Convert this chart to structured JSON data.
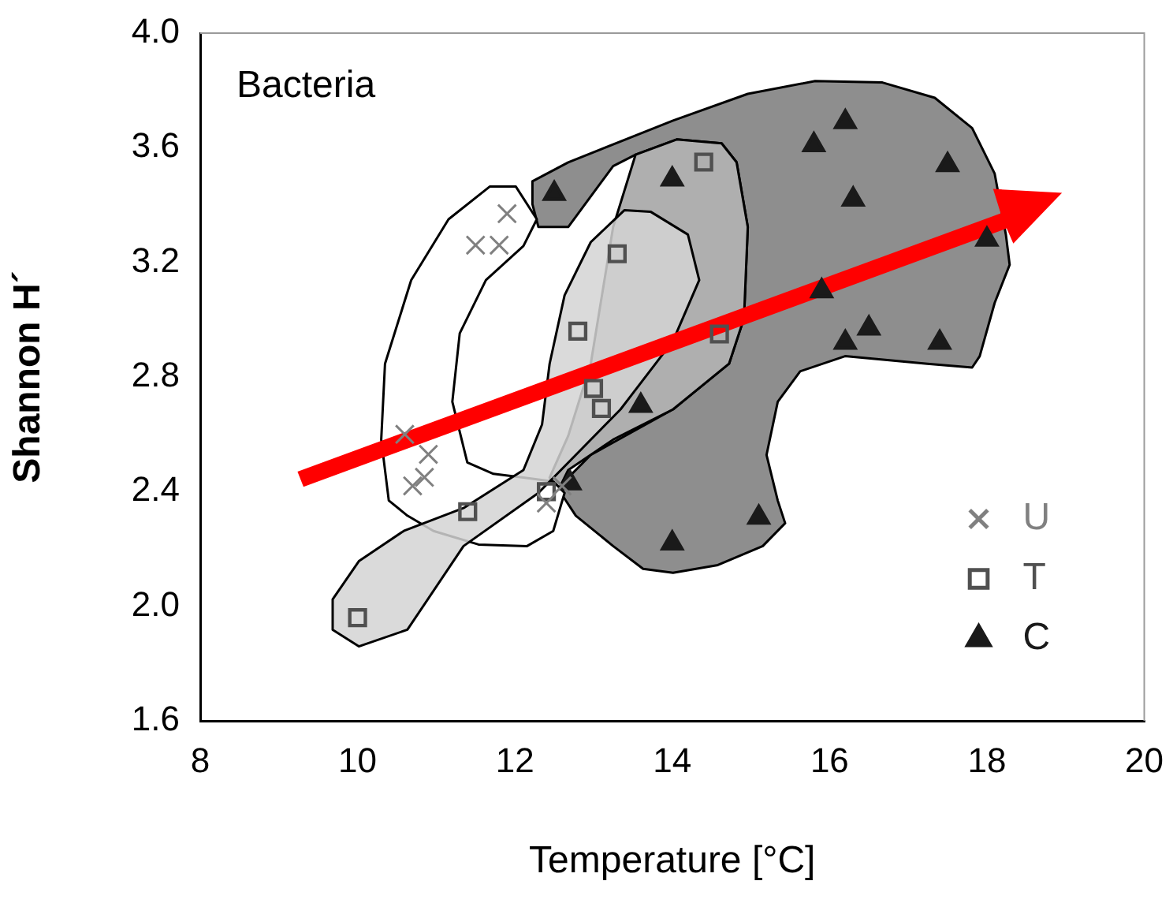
{
  "chart_data": {
    "type": "scatter",
    "xlabel": "Temperature [°C]",
    "ylabel": "Shannon H´",
    "annotations": [
      "Bacteria"
    ],
    "xlim": [
      8,
      20
    ],
    "xticks": [
      8,
      10,
      12,
      14,
      16,
      18,
      20
    ],
    "ylim": [
      1.6,
      4.0
    ],
    "yticks": [
      {
        "value": 1.6,
        "label": "1.6"
      },
      {
        "value": 2,
        "label": "2.0"
      },
      {
        "value": 2.4,
        "label": "2.4"
      },
      {
        "value": 2.8,
        "label": "2.8"
      },
      {
        "value": 3.2,
        "label": "3.2"
      },
      {
        "value": 3.6,
        "label": "3.6"
      },
      {
        "value": 4,
        "label": "4.0"
      }
    ],
    "grid": false,
    "legend": "bottom right",
    "series": [
      {
        "name": "U",
        "color": "#808080",
        "marker": "cross",
        "x": [
          11.9,
          11.5,
          11.8,
          10.6,
          10.9,
          10.85,
          10.7,
          12.4,
          12.6
        ],
        "values": [
          3.37,
          3.26,
          3.26,
          2.6,
          2.53,
          2.45,
          2.42,
          2.36,
          2.42
        ]
      },
      {
        "name": "T",
        "color": "#505050",
        "marker": "square",
        "x": [
          10.0,
          11.4,
          12.4,
          12.8,
          13.3,
          13.0,
          13.1,
          14.4,
          14.6
        ],
        "values": [
          1.96,
          2.33,
          2.4,
          2.96,
          3.23,
          2.76,
          2.69,
          3.55,
          2.95
        ]
      },
      {
        "name": "C",
        "color": "#1a1a1a",
        "marker": "triangle",
        "x": [
          12.5,
          14.0,
          15.8,
          16.2,
          17.5,
          16.3,
          18.0,
          15.9,
          16.2,
          16.5,
          17.4,
          13.6,
          15.1,
          14.0,
          12.7
        ],
        "values": [
          3.44,
          3.49,
          3.61,
          3.69,
          3.54,
          3.42,
          3.28,
          3.1,
          2.92,
          2.97,
          2.92,
          2.7,
          2.31,
          2.22,
          2.43
        ]
      }
    ]
  }
}
